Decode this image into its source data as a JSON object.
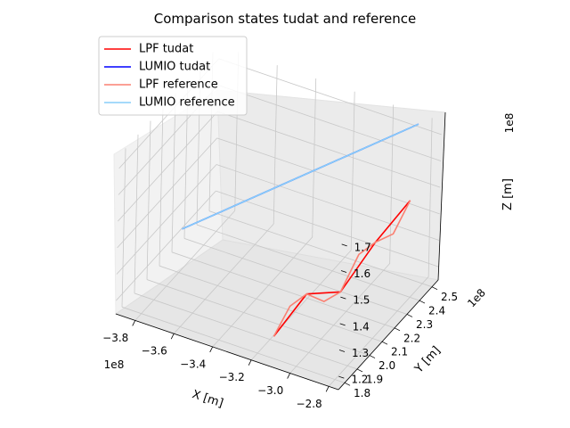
{
  "chart_data": {
    "type": "line",
    "title": "Comparison states tudat and reference",
    "projection": "3d",
    "grid": true,
    "legend_position": "top-left",
    "axes": {
      "x": {
        "label": "X [m]",
        "offset_label": "1e8",
        "ticks": [
          "−3.8",
          "−3.6",
          "−3.4",
          "−3.2",
          "−3.0",
          "−2.8"
        ],
        "tick_values": [
          -3.8,
          -3.6,
          -3.4,
          -3.2,
          -3.0,
          -2.8
        ],
        "range": [
          -3.9,
          -2.75
        ]
      },
      "y": {
        "label": "Y [m]",
        "offset_label": "1e8",
        "ticks": [
          "1.8",
          "1.9",
          "2.0",
          "2.1",
          "2.2",
          "2.3",
          "2.4",
          "2.5"
        ],
        "tick_values": [
          1.8,
          1.9,
          2.0,
          2.1,
          2.2,
          2.3,
          2.4,
          2.5
        ],
        "range": [
          1.75,
          2.55
        ]
      },
      "z": {
        "label": "Z [m]",
        "offset_label": "1e8",
        "ticks": [
          "1.2",
          "1.3",
          "1.4",
          "1.5",
          "1.6",
          "1.7"
        ],
        "tick_values": [
          1.2,
          1.3,
          1.4,
          1.5,
          1.6,
          1.7
        ],
        "range": [
          1.15,
          1.75
        ]
      }
    },
    "series": [
      {
        "name": "LPF tudat",
        "color": "#ff0000",
        "x": [
          -3.15,
          -3.08,
          -3.0,
          -2.92,
          -2.84
        ],
        "y": [
          1.85,
          2.0,
          2.15,
          2.3,
          2.45
        ],
        "z": [
          1.2,
          1.3,
          1.25,
          1.38,
          1.48
        ]
      },
      {
        "name": "LUMIO tudat",
        "color": "#0000ff",
        "x": [
          -3.85,
          -3.6,
          -3.35,
          -3.1,
          -2.85
        ],
        "y": [
          2.2,
          2.28,
          2.36,
          2.44,
          2.52
        ],
        "z": [
          1.25,
          1.37,
          1.49,
          1.61,
          1.73
        ]
      },
      {
        "name": "LPF reference",
        "color": "#fa8072",
        "x": [
          -3.15,
          -3.12,
          -3.08,
          -3.04,
          -3.0,
          -2.96,
          -2.92,
          -2.88,
          -2.84
        ],
        "y": [
          1.85,
          1.93,
          2.0,
          2.08,
          2.15,
          2.23,
          2.3,
          2.38,
          2.45
        ],
        "z": [
          1.2,
          1.28,
          1.3,
          1.24,
          1.25,
          1.36,
          1.38,
          1.38,
          1.48
        ]
      },
      {
        "name": "LUMIO reference",
        "color": "#87cefa",
        "x": [
          -3.85,
          -3.6,
          -3.35,
          -3.1,
          -2.85
        ],
        "y": [
          2.2,
          2.28,
          2.36,
          2.44,
          2.52
        ],
        "z": [
          1.25,
          1.37,
          1.49,
          1.61,
          1.73
        ]
      }
    ]
  }
}
